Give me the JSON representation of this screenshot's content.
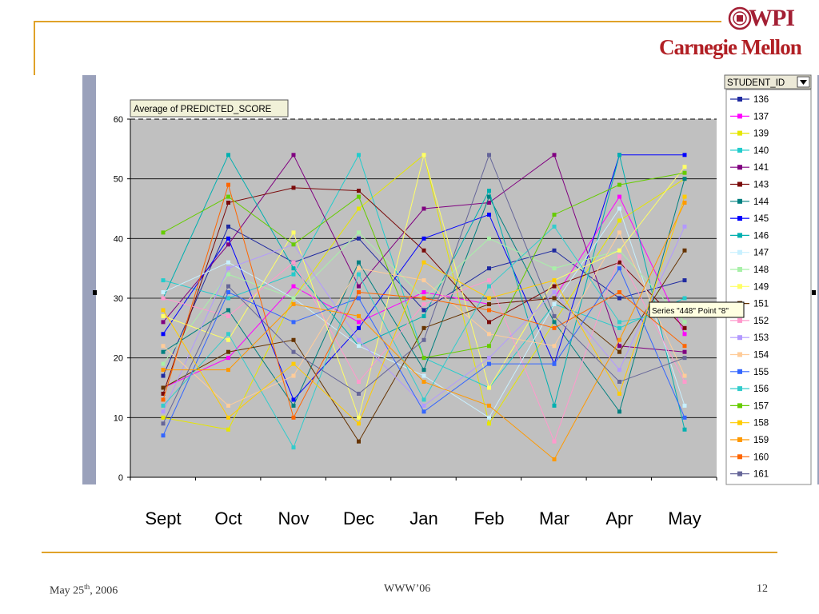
{
  "logo": {
    "wpi": "WPI",
    "cmu": "Carnegie Mellon"
  },
  "footer": {
    "date_main": "May 25",
    "date_sup": "th",
    "date_tail": ", 2006",
    "venue": "WWW’06",
    "page": "12"
  },
  "chart_data": {
    "type": "line",
    "title": "Average of PREDICTED_SCORE",
    "legend_title": "STUDENT_ID",
    "categories": [
      "Sept",
      "Oct",
      "Nov",
      "Dec",
      "Jan",
      "Feb",
      "Mar",
      "Apr",
      "May"
    ],
    "ylim": [
      0,
      60
    ],
    "yticks": [
      0,
      10,
      20,
      30,
      40,
      50,
      60
    ],
    "grid": true,
    "legend_position": "right",
    "tooltip": "Series \"448\" Point \"8\"",
    "series": [
      {
        "name": "136",
        "color": "#1f2aa0",
        "values": [
          17,
          42,
          36,
          40,
          28,
          35,
          38,
          30,
          33
        ]
      },
      {
        "name": "137",
        "color": "#ff00ff",
        "values": [
          15,
          20,
          32,
          26,
          31,
          29,
          30,
          47,
          24
        ]
      },
      {
        "name": "139",
        "color": "#e6e600",
        "values": [
          10,
          8,
          30,
          45,
          54,
          9,
          26,
          43,
          50
        ]
      },
      {
        "name": "140",
        "color": "#22cccc",
        "values": [
          33,
          30,
          34,
          54,
          20,
          15,
          29,
          25,
          30
        ]
      },
      {
        "name": "141",
        "color": "#800080",
        "values": [
          26,
          39,
          54,
          32,
          45,
          46,
          54,
          22,
          21
        ]
      },
      {
        "name": "143",
        "color": "#7a0a0a",
        "values": [
          14,
          46,
          48.5,
          48,
          38,
          26,
          32,
          36,
          25
        ]
      },
      {
        "name": "144",
        "color": "#008080",
        "values": [
          21,
          28,
          12,
          36,
          18,
          47,
          26,
          11,
          50
        ]
      },
      {
        "name": "145",
        "color": "#0000ff",
        "values": [
          24,
          40,
          13,
          25,
          40,
          44,
          19,
          54,
          54
        ]
      },
      {
        "name": "146",
        "color": "#00b0b0",
        "values": [
          30,
          54,
          35,
          22,
          27,
          48,
          12,
          54,
          8
        ]
      },
      {
        "name": "147",
        "color": "#c8f0ff",
        "values": [
          31,
          36,
          30,
          22,
          17,
          10,
          29,
          45,
          12
        ]
      },
      {
        "name": "148",
        "color": "#a8f0a8",
        "values": [
          19,
          34,
          30,
          41,
          30,
          40,
          35,
          38,
          26
        ]
      },
      {
        "name": "149",
        "color": "#ffff66",
        "values": [
          27,
          23,
          41,
          10,
          54,
          15,
          33,
          38,
          52
        ]
      },
      {
        "name": "151",
        "color": "#663300",
        "values": [
          15,
          21,
          23,
          6,
          25,
          29,
          30,
          21,
          38
        ]
      },
      {
        "name": "152",
        "color": "#ff99cc",
        "values": [
          30,
          27,
          36,
          16,
          29,
          33,
          6,
          37,
          16
        ]
      },
      {
        "name": "153",
        "color": "#b399ff",
        "values": [
          11,
          35,
          39,
          23,
          12,
          20,
          31,
          18,
          42
        ]
      },
      {
        "name": "154",
        "color": "#ffcc99",
        "values": [
          22,
          12,
          17,
          35,
          33,
          24,
          22,
          41,
          17
        ]
      },
      {
        "name": "155",
        "color": "#3366ff",
        "values": [
          7,
          31,
          26,
          30,
          11,
          19,
          19,
          35,
          10
        ]
      },
      {
        "name": "156",
        "color": "#33cccc",
        "values": [
          12,
          24,
          5,
          34,
          13,
          32,
          42,
          26,
          28
        ]
      },
      {
        "name": "157",
        "color": "#66cc00",
        "values": [
          41,
          47,
          39,
          47,
          20,
          22,
          44,
          49,
          51
        ]
      },
      {
        "name": "158",
        "color": "#ffcc00",
        "values": [
          28,
          10,
          19,
          9,
          36,
          30,
          33,
          14,
          47
        ]
      },
      {
        "name": "159",
        "color": "#ff9900",
        "values": [
          18,
          18,
          29,
          27,
          16,
          12,
          3,
          23,
          46
        ]
      },
      {
        "name": "160",
        "color": "#ff6600",
        "values": [
          13,
          49,
          10,
          31,
          30,
          28,
          25,
          31,
          22
        ]
      },
      {
        "name": "161",
        "color": "#666699",
        "values": [
          9,
          32,
          21,
          14,
          23,
          54,
          27,
          16,
          20
        ]
      }
    ]
  }
}
